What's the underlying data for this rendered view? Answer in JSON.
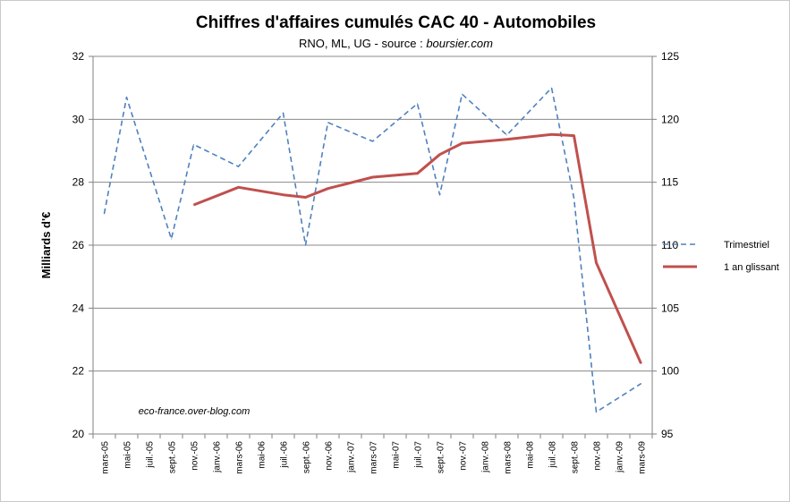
{
  "chart_data": {
    "type": "line",
    "title": "Chiffres d'affaires cumulés CAC 40 - Automobiles",
    "subtitle_prefix": "RNO, ML, UG - source : ",
    "subtitle_source": "boursier.com",
    "ylabel": "Milliards d'€",
    "annotation": "eco-france.over-blog.com",
    "x": [
      "mars-05",
      "mai-05",
      "juil.-05",
      "sept.-05",
      "nov.-05",
      "janv.-06",
      "mars-06",
      "mai-06",
      "juil.-06",
      "sept.-06",
      "nov.-06",
      "janv.-07",
      "mars-07",
      "mai-07",
      "juil.-07",
      "sept.-07",
      "nov.-07",
      "janv.-08",
      "mars-08",
      "mai-08",
      "juil.-08",
      "sept.-08",
      "nov.-08",
      "janv.-09",
      "mars-09"
    ],
    "ylim_left": [
      20,
      32
    ],
    "yticks_left": [
      20,
      22,
      24,
      26,
      28,
      30,
      32
    ],
    "ylim_right": [
      95,
      125
    ],
    "yticks_right": [
      95,
      100,
      105,
      110,
      115,
      120,
      125
    ],
    "grid": true,
    "legend_position": "right",
    "series": [
      {
        "name": "Trimestriel",
        "axis": "left",
        "style": "dashed",
        "color": "#4f81bd",
        "values": [
          27.0,
          30.7,
          null,
          26.2,
          29.2,
          null,
          28.5,
          null,
          30.2,
          26.0,
          29.9,
          null,
          29.3,
          null,
          30.5,
          27.6,
          30.8,
          null,
          29.5,
          null,
          31.0,
          27.5,
          20.7,
          null,
          21.6
        ]
      },
      {
        "name": "1 an glissant",
        "axis": "right",
        "style": "solid",
        "color": "#c0504d",
        "values": [
          null,
          null,
          null,
          null,
          113.2,
          null,
          114.6,
          null,
          114.0,
          113.8,
          114.5,
          null,
          115.4,
          null,
          115.7,
          117.2,
          118.1,
          null,
          118.4,
          null,
          118.8,
          118.7,
          108.6,
          null,
          100.6
        ]
      }
    ]
  }
}
